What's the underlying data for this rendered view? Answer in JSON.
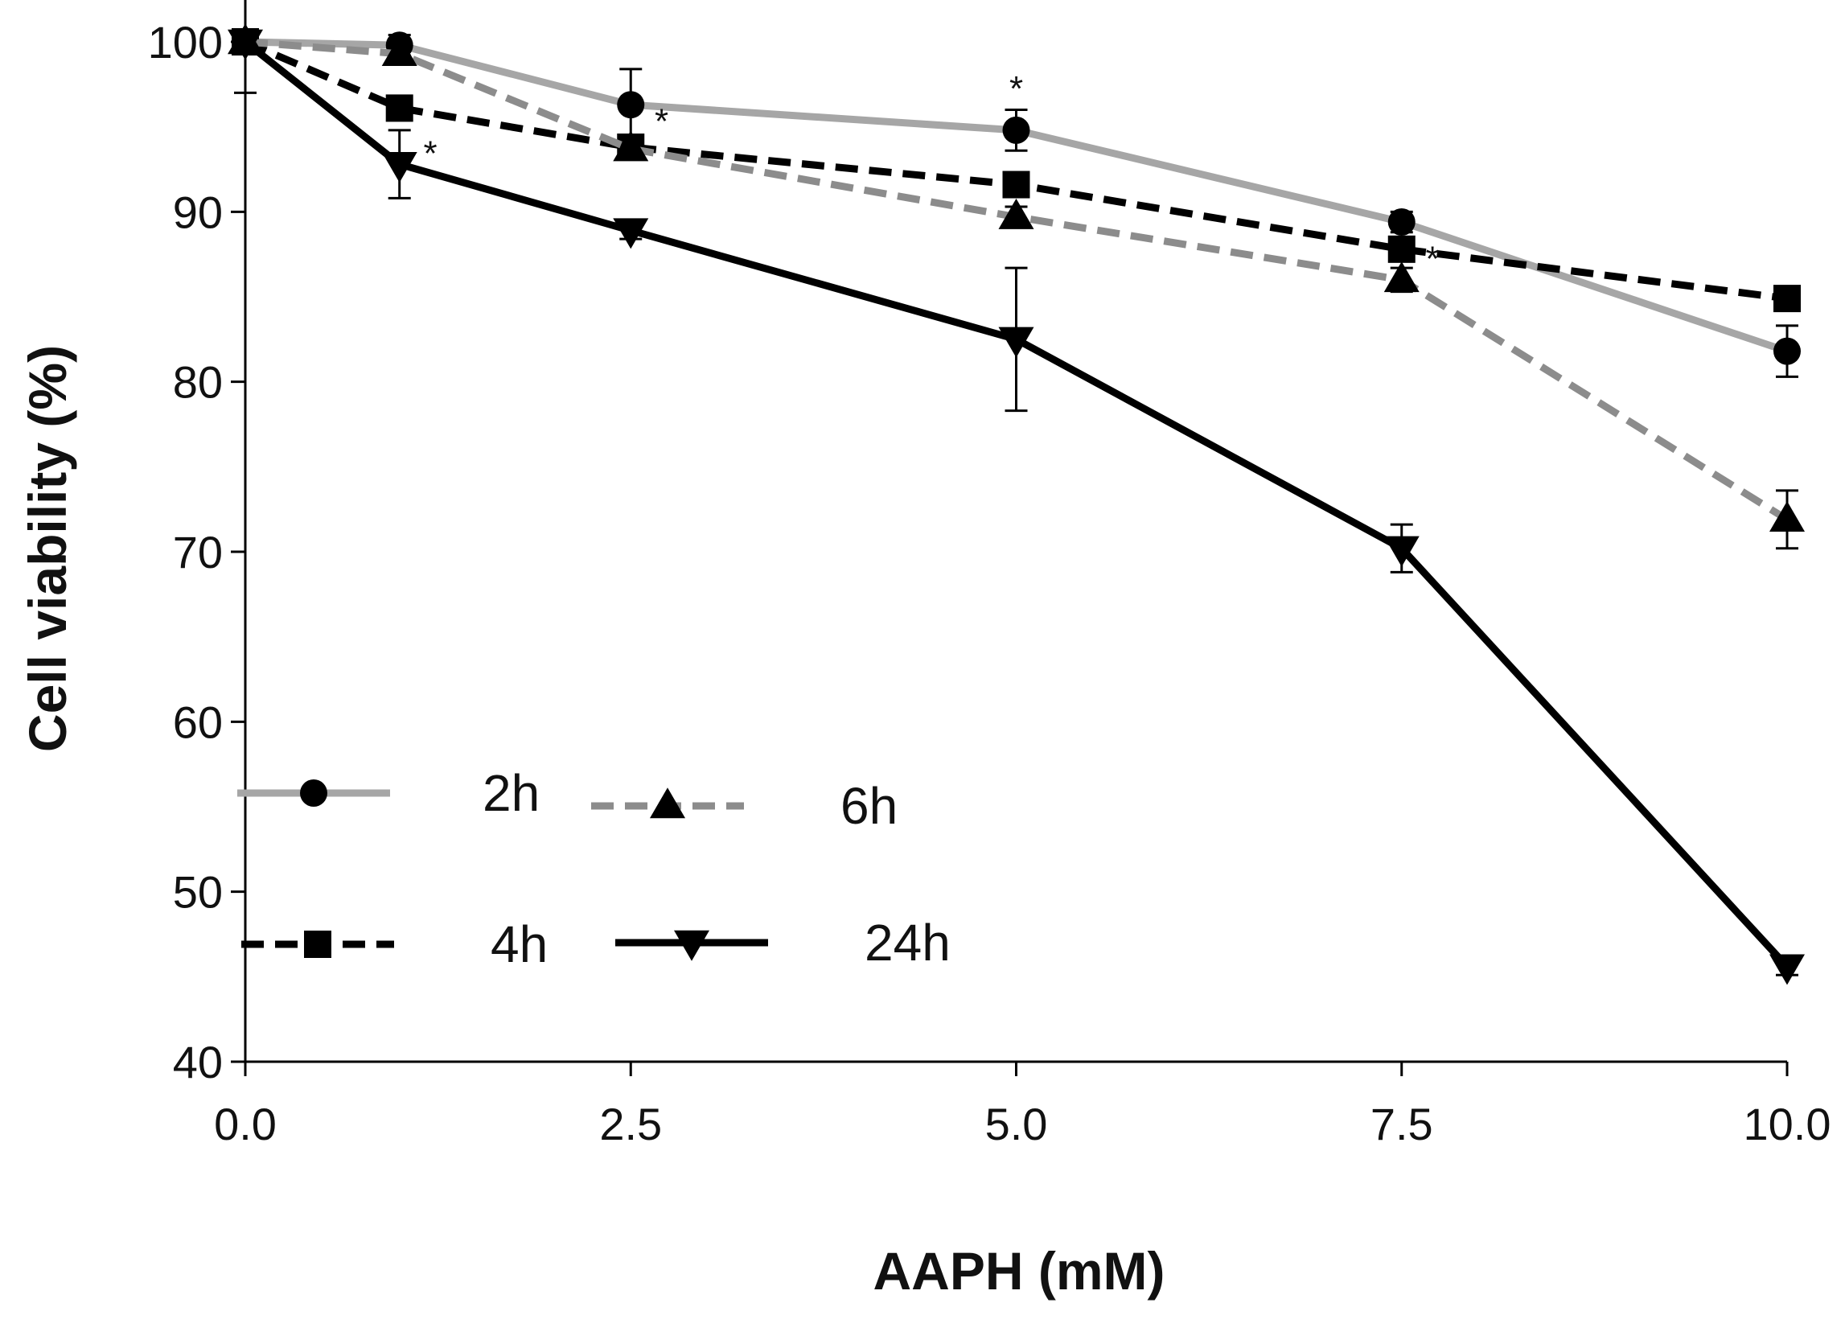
{
  "chart_data": {
    "type": "line",
    "title": "",
    "xlabel": "AAPH  (mM)",
    "ylabel": "Cell viability (%)",
    "xlim": [
      0,
      10
    ],
    "ylim": [
      40,
      100
    ],
    "xticks": [
      0,
      2.5,
      5,
      7.5,
      10
    ],
    "xtick_labels": [
      "0.0",
      "2.5",
      "5.0",
      "7.5",
      "10.0"
    ],
    "yticks": [
      40,
      50,
      60,
      70,
      80,
      90,
      100
    ],
    "ytick_labels": [
      "40",
      "50",
      "60",
      "70",
      "80",
      "90",
      "100"
    ],
    "grid": false,
    "legend_position": "bottom-left",
    "series": [
      {
        "name": "2h",
        "color": "#a6a6a6",
        "line_style": "solid",
        "marker": "circle",
        "x": [
          0,
          1,
          2.5,
          5,
          7.5,
          10
        ],
        "y": [
          100,
          99.8,
          96.3,
          94.8,
          89.4,
          81.8
        ],
        "error": [
          0.4,
          0.6,
          2.1,
          1.2,
          0.6,
          1.5
        ]
      },
      {
        "name": "4h",
        "color": "#000000",
        "line_style": "dashed",
        "marker": "square",
        "x": [
          0,
          1,
          2.5,
          5,
          7.5,
          10
        ],
        "y": [
          100,
          96.1,
          93.8,
          91.6,
          87.8,
          84.9
        ],
        "error": [
          0.4,
          0.7,
          0.5,
          0.6,
          0.5,
          0.5
        ]
      },
      {
        "name": "6h",
        "color": "#8c8c8c",
        "line_style": "dashed",
        "marker": "triangle-up",
        "x": [
          0,
          1,
          2.5,
          5,
          7.5,
          10
        ],
        "y": [
          100,
          99.3,
          93.7,
          89.7,
          86.0,
          71.9
        ],
        "error": [
          0.4,
          0.5,
          0.6,
          0.6,
          0.7,
          1.7
        ]
      },
      {
        "name": "24h",
        "color": "#000000",
        "line_style": "solid",
        "marker": "triangle-down",
        "x": [
          0,
          1,
          2.5,
          5,
          7.5,
          10
        ],
        "y": [
          100,
          92.8,
          88.9,
          82.5,
          70.2,
          45.6
        ],
        "error": [
          3.0,
          2.0,
          0.5,
          4.2,
          1.4,
          0.5
        ]
      }
    ],
    "annotations": [
      {
        "text": "*",
        "x": 1.2,
        "y": 93.4
      },
      {
        "text": "*",
        "x": 2.7,
        "y": 95.3
      },
      {
        "text": "*",
        "x": 5.0,
        "y": 97.2
      },
      {
        "text": "*",
        "x": 7.7,
        "y": 87.2
      }
    ]
  }
}
